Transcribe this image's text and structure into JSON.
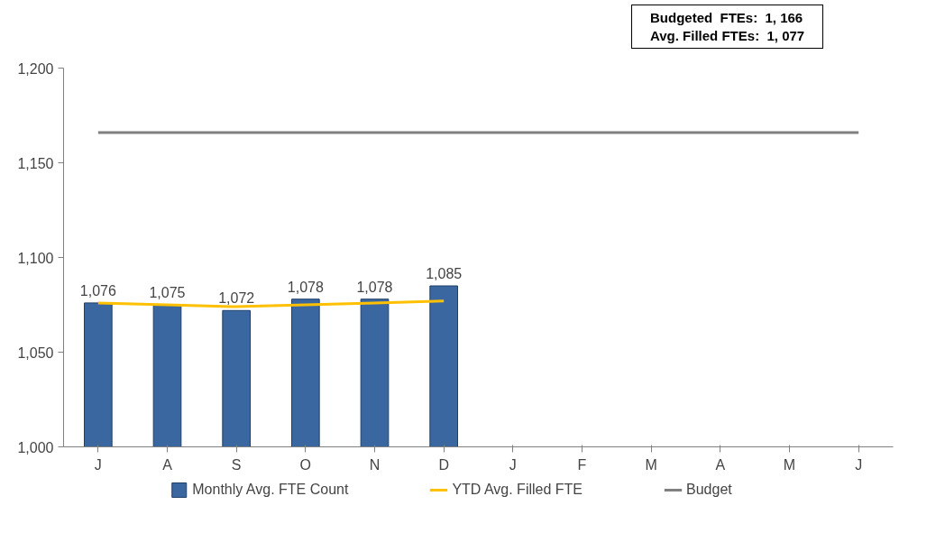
{
  "chart_data": {
    "type": "bar",
    "categories": [
      "J",
      "A",
      "S",
      "O",
      "N",
      "D",
      "J",
      "F",
      "M",
      "A",
      "M",
      "J"
    ],
    "series": [
      {
        "name": "Monthly Avg. FTE Count",
        "color": "#3a67a0",
        "values": [
          1076,
          1075,
          1072,
          1078,
          1078,
          1085,
          null,
          null,
          null,
          null,
          null,
          null
        ],
        "value_labels": [
          "1,076",
          "1,075",
          "1,072",
          "1,078",
          "1,078",
          "1,085",
          null,
          null,
          null,
          null,
          null,
          null
        ]
      },
      {
        "name": "YTD Avg. Filled FTE",
        "type": "line",
        "color": "#ffc000",
        "values": [
          1076,
          1075,
          1074,
          1075,
          1076,
          1077,
          null,
          null,
          null,
          null,
          null,
          null
        ]
      },
      {
        "name": "Budget",
        "type": "line",
        "color": "#808080",
        "values": [
          1166,
          1166,
          1166,
          1166,
          1166,
          1166,
          1166,
          1166,
          1166,
          1166,
          1166,
          1166
        ]
      }
    ],
    "ylim": [
      1000,
      1200
    ],
    "yticks": [
      {
        "value": 1000,
        "label": "1,000"
      },
      {
        "value": 1050,
        "label": "1,050"
      },
      {
        "value": 1100,
        "label": "1,100"
      },
      {
        "value": 1150,
        "label": "1,150"
      },
      {
        "value": 1200,
        "label": "1,200"
      }
    ],
    "grid": false,
    "legend": "bottom",
    "annotations": [
      "Budgeted  FTEs:  1, 166",
      "Avg. Filled FTEs:  1, 077"
    ]
  }
}
